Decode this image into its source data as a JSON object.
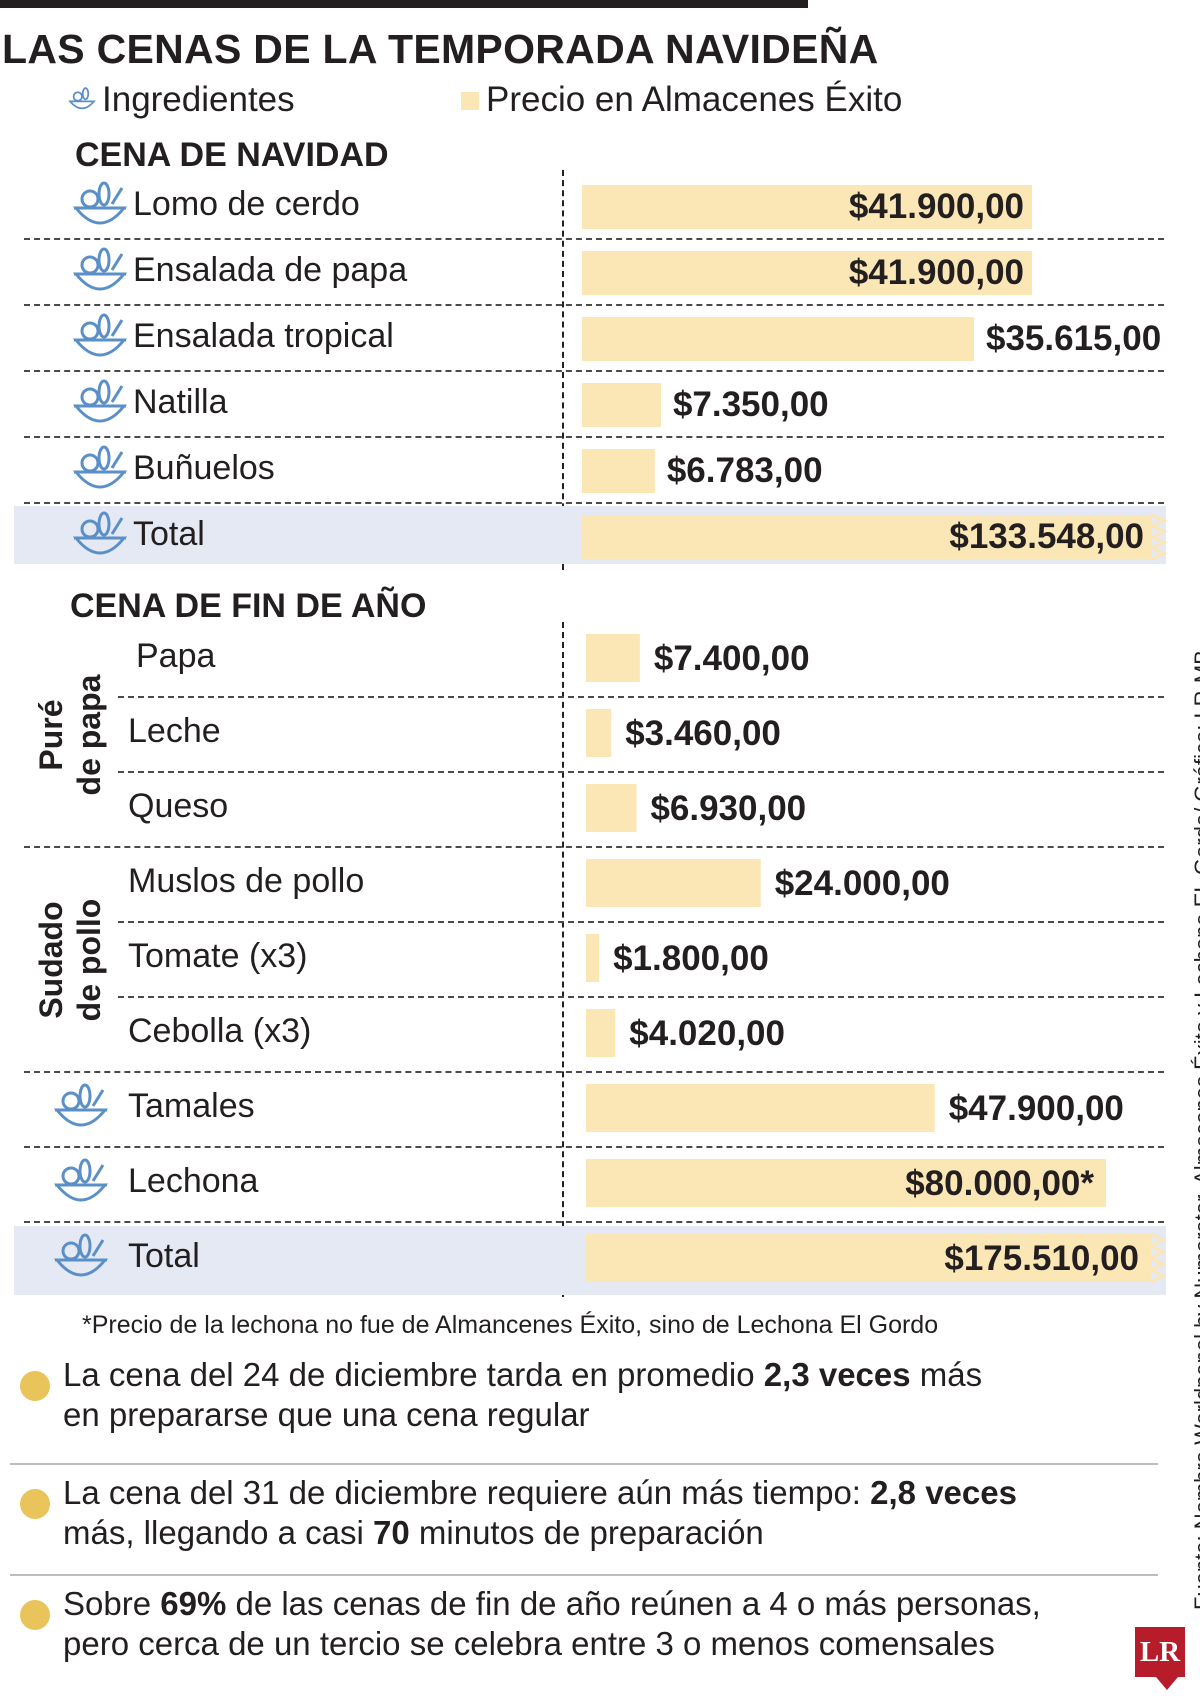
{
  "title": "LAS CENAS DE LA TEMPORADA NAVIDEÑA",
  "legend": {
    "ingredients_label": "Ingredientes",
    "price_label": "Precio en Almacenes Éxito",
    "ingredients_icon": "food-basket-icon"
  },
  "colors": {
    "bar": "#fbe6b6",
    "total_band": "#e4e9f4",
    "icon": "#5b8fc7",
    "dot": "#e8c45a",
    "logo": "#b71c2a"
  },
  "chart_data": [
    {
      "type": "bar",
      "orientation": "horizontal",
      "title": "CENA DE NAVIDAD",
      "categories": [
        "Lomo de cerdo",
        "Ensalada de papa",
        "Ensalada tropical",
        "Natilla",
        "Buñuelos",
        "Total"
      ],
      "values": [
        41900,
        41900,
        35615,
        7350,
        6783,
        133548
      ],
      "value_labels": [
        "$41.900,00",
        "$41.900,00",
        "$35.615,00",
        "$7.350,00",
        "$6.783,00",
        "$133.548,00"
      ],
      "total_index": 5,
      "unit": "COP"
    },
    {
      "type": "bar",
      "orientation": "horizontal",
      "title": "CENA DE FIN DE AÑO",
      "categories": [
        "Papa",
        "Leche",
        "Queso",
        "Muslos de pollo",
        "Tomate (x3)",
        "Cebolla (x3)",
        "Tamales",
        "Lechona",
        "Total"
      ],
      "values": [
        7400,
        3460,
        6930,
        24000,
        1800,
        4020,
        47900,
        80000,
        175510
      ],
      "value_labels": [
        "$7.400,00",
        "$3.460,00",
        "$6.930,00",
        "$24.000,00",
        "$1.800,00",
        "$4.020,00",
        "$47.900,00",
        "$80.000,00*",
        "$175.510,00"
      ],
      "groups": [
        {
          "name": "Puré de papa",
          "lines": [
            "Puré",
            "de papa"
          ],
          "items": [
            "Papa",
            "Leche",
            "Queso"
          ]
        },
        {
          "name": "Sudado de pollo",
          "lines": [
            "Sudado",
            "de pollo"
          ],
          "items": [
            "Muslos de pollo",
            "Tomate (x3)",
            "Cebolla (x3)"
          ]
        }
      ],
      "total_index": 8,
      "unit": "COP"
    }
  ],
  "note": "*Precio de la lechona no fue de Almancenes Éxito, sino de Lechona El Gordo",
  "facts": [
    {
      "parts": [
        {
          "t": "La cena del 24 de diciembre tarda en promedio "
        },
        {
          "t": "2,3 veces",
          "b": true
        },
        {
          "t": " más"
        }
      ],
      "line2": [
        {
          "t": "en prepararse que una cena regular"
        }
      ]
    },
    {
      "parts": [
        {
          "t": "La cena del 31 de diciembre requiere aún más tiempo: "
        },
        {
          "t": "2,8 veces",
          "b": true
        }
      ],
      "line2": [
        {
          "t": "más, llegando a casi "
        },
        {
          "t": "70",
          "b": true
        },
        {
          "t": " minutos de preparación"
        }
      ]
    },
    {
      "parts": [
        {
          "t": "Sobre  "
        },
        {
          "t": "69%",
          "b": true
        },
        {
          "t": " de las cenas de fin de año reúnen a 4 o más personas,"
        }
      ],
      "line2": [
        {
          "t": "pero cerca de un tercio se celebra entre 3 o menos comensales"
        }
      ]
    }
  ],
  "source": "Fuente: Nombre Worldpanel by Numerator, Almacenes Éxito y Lechona EL Gordo/ Gráfico: LR-MB",
  "logo_text": "LR"
}
